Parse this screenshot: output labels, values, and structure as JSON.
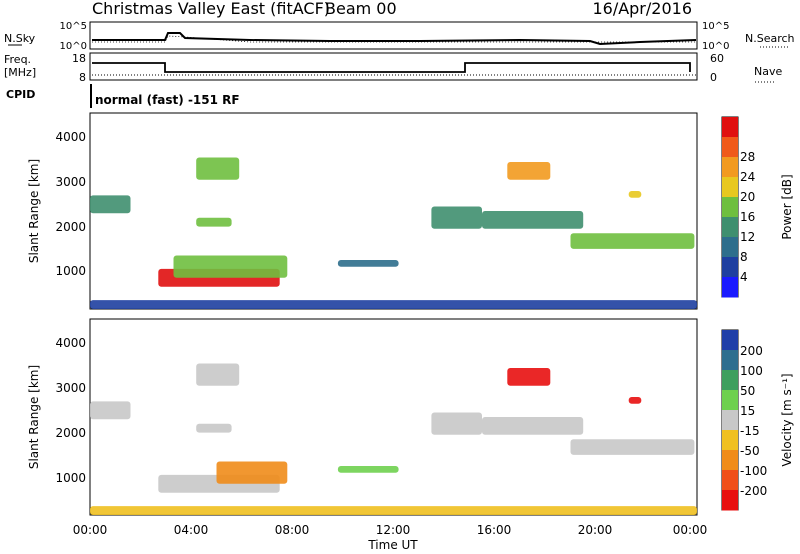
{
  "header": {
    "title": "Christmas Valley East (fitACF)",
    "beam": "Beam 00",
    "date": "16/Apr/2016"
  },
  "status_panels": {
    "nsky_label": "N.Sky",
    "nsearch_label": "N.Search",
    "nsky_ticks": [
      "10^5",
      "10^0"
    ],
    "nsearch_ticks": [
      "10^5",
      "10^0"
    ],
    "freq_label": "Freq.",
    "freq_unit": "[MHz]",
    "freq_ticks": [
      "18",
      "8"
    ],
    "nave_label": "Nave",
    "nave_ticks": [
      "60",
      "0"
    ],
    "cpid_label": "CPID",
    "cpid_text": "normal (fast) -151 RF"
  },
  "x_axis": {
    "label": "Time UT",
    "ticks": [
      "00:00",
      "04:00",
      "08:00",
      "12:00",
      "16:00",
      "20:00",
      "00:00"
    ]
  },
  "colors": {
    "power": [
      "#1a1aff",
      "#1e3fa0",
      "#2e6e8c",
      "#3f8f6f",
      "#6fbf3f",
      "#e8c81f",
      "#f29a1f",
      "#f05a1a",
      "#e01010"
    ],
    "velocity": [
      "#1f3fa8",
      "#2f6f8f",
      "#3f9f5f",
      "#6fd04f",
      "#c8c8c8",
      "#f0c020",
      "#f08c1a",
      "#f0501a",
      "#e81010"
    ]
  },
  "chart_data": [
    {
      "type": "heatmap",
      "name": "power",
      "xlabel": "",
      "ylabel": "Slant Range [km]",
      "ylim": [
        200,
        4600
      ],
      "yticks": [
        "1000",
        "2000",
        "3000",
        "4000"
      ],
      "xlim": [
        0,
        24
      ],
      "colorbar": {
        "label": "Power [dB]",
        "ticks": [
          "4",
          "8",
          "12",
          "16",
          "20",
          "24",
          "28"
        ]
      },
      "regions": [
        {
          "t0": 0.0,
          "t1": 1.6,
          "r0": 2350,
          "r1": 2750,
          "level": 3
        },
        {
          "t0": 2.7,
          "t1": 7.5,
          "r0": 700,
          "r1": 1100,
          "level": 8
        },
        {
          "t0": 3.3,
          "t1": 7.8,
          "r0": 900,
          "r1": 1400,
          "level": 4
        },
        {
          "t0": 4.2,
          "t1": 5.9,
          "r0": 3100,
          "r1": 3600,
          "level": 4
        },
        {
          "t0": 4.2,
          "t1": 5.6,
          "r0": 2050,
          "r1": 2250,
          "level": 4
        },
        {
          "t0": 9.8,
          "t1": 12.2,
          "r0": 1150,
          "r1": 1300,
          "level": 2
        },
        {
          "t0": 13.5,
          "t1": 15.5,
          "r0": 2000,
          "r1": 2500,
          "level": 3
        },
        {
          "t0": 15.5,
          "t1": 19.5,
          "r0": 2000,
          "r1": 2400,
          "level": 3
        },
        {
          "t0": 19.0,
          "t1": 23.9,
          "r0": 1550,
          "r1": 1900,
          "level": 4
        },
        {
          "t0": 16.5,
          "t1": 18.2,
          "r0": 3100,
          "r1": 3500,
          "level": 6
        },
        {
          "t0": 21.3,
          "t1": 21.8,
          "r0": 2700,
          "r1": 2850,
          "level": 5
        },
        {
          "t0": 0.0,
          "t1": 24.0,
          "r0": 200,
          "r1": 400,
          "level": 1
        }
      ]
    },
    {
      "type": "heatmap",
      "name": "velocity",
      "xlabel": "Time UT",
      "ylabel": "Slant Range [km]",
      "ylim": [
        200,
        4600
      ],
      "yticks": [
        "1000",
        "2000",
        "3000",
        "4000"
      ],
      "xlim": [
        0,
        24
      ],
      "colorbar": {
        "label": "Velocity [m s⁻¹]",
        "ticks": [
          "200",
          "100",
          "50",
          "15",
          "-15",
          "-50",
          "-100",
          "-200"
        ]
      },
      "regions": [
        {
          "t0": 0.0,
          "t1": 1.6,
          "r0": 2350,
          "r1": 2750,
          "level": 4
        },
        {
          "t0": 2.7,
          "t1": 7.5,
          "r0": 700,
          "r1": 1100,
          "level": 4
        },
        {
          "t0": 5.0,
          "t1": 7.8,
          "r0": 900,
          "r1": 1400,
          "level": 6
        },
        {
          "t0": 4.2,
          "t1": 5.9,
          "r0": 3100,
          "r1": 3600,
          "level": 4
        },
        {
          "t0": 4.2,
          "t1": 5.6,
          "r0": 2050,
          "r1": 2250,
          "level": 4
        },
        {
          "t0": 9.8,
          "t1": 12.2,
          "r0": 1150,
          "r1": 1300,
          "level": 3
        },
        {
          "t0": 13.5,
          "t1": 15.5,
          "r0": 2000,
          "r1": 2500,
          "level": 4
        },
        {
          "t0": 15.5,
          "t1": 19.5,
          "r0": 2000,
          "r1": 2400,
          "level": 4
        },
        {
          "t0": 19.0,
          "t1": 23.9,
          "r0": 1550,
          "r1": 1900,
          "level": 4
        },
        {
          "t0": 16.5,
          "t1": 18.2,
          "r0": 3100,
          "r1": 3500,
          "level": 8
        },
        {
          "t0": 21.3,
          "t1": 21.8,
          "r0": 2700,
          "r1": 2850,
          "level": 8
        },
        {
          "t0": 0.0,
          "t1": 24.0,
          "r0": 200,
          "r1": 400,
          "level": 5
        }
      ]
    }
  ]
}
